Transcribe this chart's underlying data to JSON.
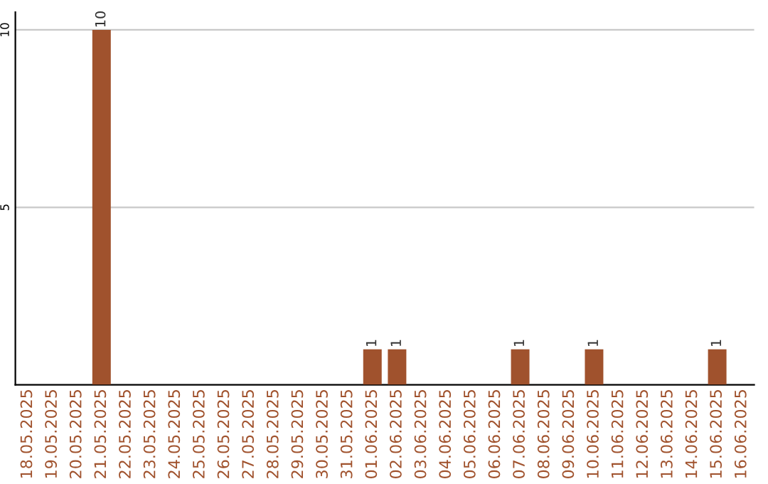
{
  "chart_data": {
    "type": "bar",
    "categories": [
      "18.05.2025",
      "19.05.2025",
      "20.05.2025",
      "21.05.2025",
      "22.05.2025",
      "23.05.2025",
      "24.05.2025",
      "25.05.2025",
      "26.05.2025",
      "27.05.2025",
      "28.05.2025",
      "29.05.2025",
      "30.05.2025",
      "31.05.2025",
      "01.06.2025",
      "02.06.2025",
      "03.06.2025",
      "04.06.2025",
      "05.06.2025",
      "06.06.2025",
      "07.06.2025",
      "08.06.2025",
      "09.06.2025",
      "10.06.2025",
      "11.06.2025",
      "12.06.2025",
      "13.06.2025",
      "14.06.2025",
      "15.06.2025",
      "16.06.2025"
    ],
    "values": [
      0,
      0,
      0,
      10,
      0,
      0,
      0,
      0,
      0,
      0,
      0,
      0,
      0,
      0,
      1,
      1,
      0,
      0,
      0,
      0,
      1,
      0,
      0,
      1,
      0,
      0,
      0,
      0,
      1,
      0
    ],
    "value_labels": [
      null,
      null,
      null,
      "10",
      null,
      null,
      null,
      null,
      null,
      null,
      null,
      null,
      null,
      null,
      "1",
      "1",
      null,
      null,
      null,
      null,
      "1",
      null,
      null,
      "1",
      null,
      null,
      null,
      null,
      "1",
      null
    ],
    "color": "#a0522d",
    "ylim": [
      0,
      10.5
    ],
    "yticks": [
      5,
      10
    ],
    "grid": "y"
  }
}
